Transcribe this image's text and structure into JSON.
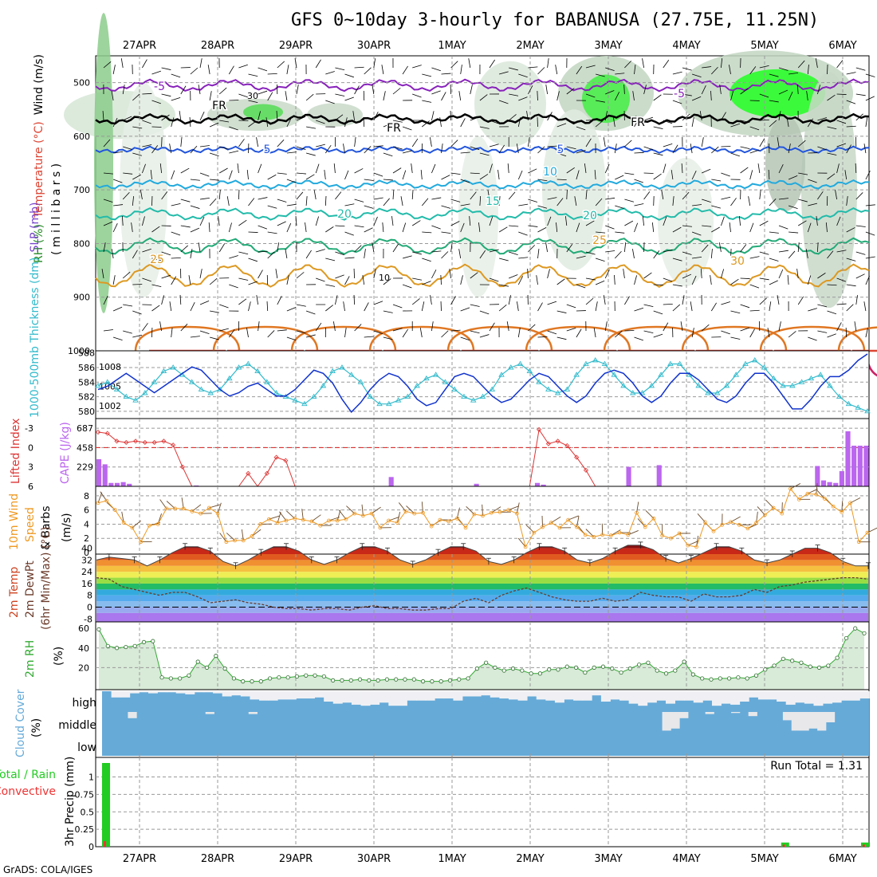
{
  "title": "GFS 0~10day 3-hourly for BABANUSA (27.75E, 11.25N)",
  "footer": "GrADS: COLA/IGES",
  "dates": [
    "27APR",
    "28APR",
    "29APR",
    "30APR",
    "1MAY",
    "2MAY",
    "3MAY",
    "4MAY",
    "5MAY",
    "6MAY"
  ],
  "colors": {
    "rh_green": "#33cc33",
    "thickness": "#33bbcc",
    "slp": "#1133cc",
    "lifted": "#dd3333",
    "cape": "#bb66ee",
    "wind": "#ee9922",
    "rh2m": "#33aa33",
    "cloud": "#66aad8",
    "rain": "#22cc22",
    "conv": "#ee3333"
  },
  "chart_data": [
    {
      "type": "contour",
      "panel": "upper-air",
      "ylabel_parts": [
        "RH (%)",
        "Temperature (°C)",
        "Wind (m/s)"
      ],
      "yunit": "( m i l l i b a r s )",
      "yticks": [
        "500",
        "600",
        "700",
        "800",
        "900",
        "1000"
      ],
      "temperature_labels": [
        "-5",
        "-5",
        "FR",
        "FR",
        "FR",
        "5",
        "5",
        "10",
        "15",
        "20",
        "20",
        "25",
        "25",
        "30"
      ],
      "rh_labels": [
        "30",
        "10"
      ]
    },
    {
      "type": "line",
      "panel": "thickness-slp",
      "ylabel_left": "1000-500mb Thickness (dm)",
      "ylabel_right": "SLP (mb)",
      "yticks_left": [
        "588",
        "586",
        "584",
        "582",
        "580"
      ],
      "yticks_right": [
        "1008",
        "1005",
        "1002"
      ],
      "series": [
        {
          "name": "1000-500mb Thickness (dm)",
          "values": [
            583.5,
            584,
            583,
            582,
            581.5,
            582.5,
            584,
            585.5,
            586,
            585,
            584,
            583,
            582.5,
            583,
            584.5,
            586,
            586.5,
            585.5,
            584,
            582.5,
            582,
            581.5,
            581,
            582,
            583.5,
            585.5,
            586,
            585,
            584,
            582,
            581,
            581,
            581.5,
            582,
            583.5,
            584.5,
            585,
            584,
            583,
            582,
            581.5,
            582,
            583,
            585,
            586,
            586.5,
            585.5,
            584,
            583,
            582.5,
            583,
            585,
            586.5,
            587,
            586.5,
            585,
            583.5,
            582.5,
            582.5,
            583.5,
            585,
            586.5,
            586.5,
            585,
            583.5,
            582.5,
            582.5,
            583.5,
            585,
            586.5,
            587,
            586,
            584.5,
            583.5,
            583.5,
            584,
            584.5,
            585,
            583.5,
            582,
            581,
            580.5,
            580
          ]
        },
        {
          "name": "SLP (mb)",
          "values": [
            1004.5,
            1005,
            1006,
            1007,
            1006,
            1005,
            1004,
            1005,
            1006,
            1007,
            1008,
            1007.5,
            1006,
            1004.5,
            1003.5,
            1004,
            1005,
            1005.5,
            1004.5,
            1003.5,
            1003.5,
            1004.5,
            1006,
            1007.5,
            1007,
            1005.5,
            1003,
            1001,
            1002.5,
            1004.5,
            1006,
            1007,
            1006.5,
            1005,
            1003,
            1002,
            1002.5,
            1004.5,
            1006.5,
            1007,
            1006.5,
            1005,
            1003.5,
            1002.5,
            1003,
            1004.5,
            1006,
            1007,
            1006.5,
            1005,
            1003.5,
            1002.5,
            1003.5,
            1005.5,
            1007,
            1007.5,
            1007,
            1005.5,
            1003.5,
            1002.5,
            1003.5,
            1005.5,
            1007,
            1007,
            1006,
            1004.5,
            1003,
            1002.5,
            1003.5,
            1005.5,
            1007,
            1007,
            1005.5,
            1003.5,
            1001.5,
            1001.5,
            1003,
            1005,
            1006.5,
            1006.5,
            1007.5,
            1009,
            1010
          ]
        }
      ]
    },
    {
      "type": "bar",
      "panel": "lifted-cape",
      "ylabel_left": "Lifted Index",
      "ylabel_right": "CAPE (J/kg)",
      "yticks_left": [
        "-3",
        "0",
        "3",
        "6"
      ],
      "yticks_right": [
        "687",
        "458",
        "229"
      ],
      "lifted_index": [
        -2.4,
        -2.2,
        -1,
        -0.8,
        -1,
        -0.8,
        -0.8,
        -1,
        -0.4,
        3,
        6,
        6,
        6,
        6,
        6,
        6,
        4,
        6,
        4,
        1.5,
        2,
        6,
        6,
        6,
        6,
        6,
        6,
        6,
        6,
        6,
        6,
        6,
        6,
        6,
        6,
        6,
        6,
        6,
        6,
        6,
        6,
        6,
        6,
        6,
        6,
        6,
        6,
        -2.8,
        -0.6,
        -1,
        -0.3,
        1.5,
        3.5,
        6,
        6,
        6,
        6,
        6,
        6,
        6,
        6,
        6,
        6,
        6,
        6,
        6,
        6,
        6,
        6,
        6,
        6,
        6,
        6,
        6,
        6,
        6,
        6,
        6,
        6,
        6,
        6,
        6,
        6
      ],
      "cape": [
        320,
        260,
        40,
        40,
        50,
        30,
        0,
        0,
        0,
        0,
        0,
        0,
        0,
        0,
        0,
        0,
        10,
        0,
        0,
        0,
        0,
        0,
        0,
        0,
        0,
        0,
        0,
        0,
        0,
        0,
        0,
        0,
        0,
        0,
        0,
        0,
        0,
        0,
        0,
        0,
        0,
        0,
        0,
        0,
        0,
        0,
        0,
        0,
        110,
        0,
        0,
        0,
        0,
        0,
        0,
        0,
        0,
        0,
        0,
        0,
        0,
        0,
        30,
        0,
        0,
        0,
        0,
        0,
        0,
        0,
        0,
        0,
        40,
        20,
        0,
        0,
        0,
        0,
        0,
        0,
        0,
        0,
        0,
        0,
        0,
        0,
        0,
        230,
        0,
        0,
        0,
        0,
        250,
        0,
        0,
        0,
        0,
        0,
        0,
        0,
        0,
        0,
        0,
        0,
        0,
        0,
        0,
        0,
        0,
        0,
        0,
        0,
        0,
        0,
        0,
        0,
        0,
        0,
        240,
        70,
        50,
        40,
        180,
        650,
        480,
        480,
        480
      ],
      "zero_line": 0
    },
    {
      "type": "line",
      "panel": "wind10m",
      "ylabel": "10m Wind Speed & Barbs (m/s)",
      "yticks": [
        "8",
        "6",
        "4",
        "2",
        "0"
      ],
      "ylim": [
        0,
        9
      ],
      "series": [
        {
          "name": "10m Wind Speed (m/s)",
          "values": [
            7,
            7.3,
            6,
            4.2,
            3.5,
            1.5,
            3.8,
            4,
            6.2,
            6.2,
            6.2,
            5.8,
            5.5,
            6.3,
            5.5,
            1.5,
            1.7,
            1.7,
            2.3,
            4,
            4.7,
            4.2,
            4.5,
            4.8,
            4.6,
            4.4,
            3.8,
            4.5,
            4.5,
            4.7,
            5.5,
            5.2,
            5.5,
            3.5,
            4.5,
            4.2,
            5.8,
            5.5,
            5.6,
            3.7,
            4.6,
            4.4,
            4.8,
            3.5,
            5.4,
            5.2,
            5.6,
            5.7,
            6,
            5.5,
            0.8,
            2.8,
            3.6,
            4.2,
            3.5,
            4.6,
            3.6,
            2.5,
            2.2,
            2.5,
            2.4,
            2.8,
            2.5,
            5.6,
            3.6,
            4.8,
            2.4,
            2,
            2.7,
            1,
            0.8,
            4.3,
            3,
            3.9,
            4.3,
            3.9,
            3.4,
            4.2,
            5.3,
            6.3,
            5.5,
            9,
            7.5,
            8.3,
            8.2,
            7.6,
            6.5,
            5.7,
            7,
            1.5,
            2.8
          ]
        }
      ]
    },
    {
      "type": "area",
      "panel": "temp2m",
      "ylabel_parts": [
        "2m Temp",
        "2m DewPt",
        "(6hr Min/Max) (°C)"
      ],
      "yticks": [
        "40",
        "32",
        "24",
        "16",
        "8",
        "0",
        "-8"
      ],
      "series": [
        {
          "name": "2m Temp",
          "values": [
            32,
            34,
            33,
            32,
            28,
            32,
            37,
            41,
            41,
            38,
            31,
            28,
            32,
            37,
            41,
            41,
            38,
            32,
            29,
            32,
            37,
            41,
            41,
            38,
            32,
            29,
            32,
            37,
            41,
            41,
            38,
            31,
            29,
            32,
            37,
            41,
            41,
            38,
            32,
            30,
            33,
            38,
            42,
            42,
            39,
            33,
            30,
            33,
            37,
            41,
            41,
            38,
            32,
            30,
            32,
            36,
            40,
            40,
            37,
            31,
            28,
            28
          ]
        },
        {
          "name": "2m DewPt",
          "values": [
            20,
            19,
            14,
            12,
            10,
            8,
            10,
            10,
            7,
            3,
            4,
            5,
            3,
            2,
            0,
            -1,
            -1,
            -2,
            -1,
            -1,
            -2,
            0,
            1,
            -1,
            -1,
            -2,
            -2,
            -1,
            -1,
            4,
            6,
            3,
            8,
            11,
            13,
            10,
            7,
            5,
            4,
            4,
            6,
            4,
            5,
            10,
            8,
            7,
            7,
            4,
            9,
            7,
            7,
            8,
            12,
            10,
            14,
            15,
            17,
            18,
            19,
            20,
            20,
            19
          ]
        }
      ]
    },
    {
      "type": "area",
      "panel": "rh2m",
      "ylabel": "2m RH (%)",
      "yticks": [
        "60",
        "40",
        "20"
      ],
      "ylim": [
        0,
        65
      ],
      "series": [
        {
          "name": "2m RH",
          "values": [
            59,
            42,
            40,
            41,
            42,
            46,
            47,
            10,
            9,
            9,
            12,
            26,
            20,
            32,
            19,
            9,
            6,
            6,
            6,
            9,
            10,
            10,
            11,
            12,
            12,
            11,
            7,
            7,
            7,
            8,
            7,
            7,
            8,
            8,
            8,
            8,
            6,
            6,
            6,
            7,
            8,
            9,
            19,
            25,
            20,
            17,
            19,
            17,
            14,
            14,
            18,
            18,
            21,
            20,
            15,
            20,
            21,
            19,
            15,
            19,
            23,
            25,
            17,
            14,
            17,
            26,
            13,
            9,
            8,
            9,
            9,
            10,
            9,
            12,
            18,
            22,
            29,
            27,
            25,
            21,
            20,
            22,
            30,
            50,
            60,
            55
          ]
        }
      ]
    },
    {
      "type": "heatmap",
      "panel": "cloud-cover",
      "ylabel": "Cloud Cover (%)",
      "rows": [
        "high",
        "middle",
        "low"
      ],
      "high": [
        100,
        70,
        70,
        90,
        95,
        90,
        95,
        95,
        90,
        85,
        95,
        95,
        90,
        75,
        80,
        75,
        60,
        55,
        55,
        60,
        60,
        65,
        65,
        70,
        50,
        40,
        45,
        35,
        30,
        35,
        45,
        30,
        30,
        55,
        55,
        55,
        65,
        65,
        55,
        75,
        75,
        80,
        70,
        65,
        60,
        55,
        75,
        60,
        55,
        45,
        60,
        55,
        55,
        80,
        50,
        60,
        55,
        40,
        30,
        45,
        55,
        40,
        55,
        55,
        45,
        55,
        30,
        40,
        35,
        50,
        70,
        60,
        60,
        50,
        35,
        45,
        40,
        30,
        40,
        45,
        55,
        55,
        65
      ],
      "middle": [
        0,
        0,
        0,
        30,
        0,
        0,
        0,
        0,
        0,
        0,
        0,
        0,
        10,
        0,
        0,
        0,
        0,
        10,
        0,
        0,
        0,
        0,
        0,
        0,
        0,
        0,
        0,
        0,
        0,
        0,
        0,
        0,
        0,
        0,
        0,
        0,
        0,
        0,
        0,
        0,
        0,
        0,
        0,
        0,
        0,
        0,
        0,
        0,
        0,
        0,
        0,
        0,
        0,
        0,
        0,
        0,
        0,
        0,
        0,
        0,
        0,
        0,
        0,
        0,
        0,
        90,
        80,
        30,
        0,
        0,
        10,
        0,
        0,
        5,
        0,
        20,
        0,
        0,
        0,
        40,
        90,
        90,
        80,
        90,
        50,
        0,
        0,
        0,
        0
      ],
      "low": [
        0
      ]
    },
    {
      "type": "bar",
      "panel": "precip",
      "ylabel_parts": [
        "Total / Rain",
        "Convective",
        "3hr Precip (mm)"
      ],
      "yticks": [
        "1",
        "0.75",
        "0.5",
        "0.25",
        "0"
      ],
      "ylim": [
        0,
        1.2
      ],
      "run_total_label": "Run Total = 1.31",
      "total": [
        1.2,
        0,
        0,
        0,
        0,
        0,
        0,
        0,
        0,
        0,
        0,
        0,
        0,
        0,
        0,
        0,
        0,
        0,
        0,
        0,
        0,
        0,
        0,
        0,
        0,
        0,
        0,
        0,
        0,
        0,
        0,
        0,
        0,
        0,
        0,
        0,
        0,
        0,
        0,
        0,
        0,
        0,
        0,
        0,
        0,
        0,
        0,
        0,
        0,
        0,
        0,
        0,
        0,
        0,
        0,
        0,
        0,
        0,
        0,
        0,
        0,
        0,
        0,
        0,
        0,
        0,
        0,
        0,
        0,
        0,
        0,
        0,
        0,
        0,
        0,
        0,
        0,
        0,
        0,
        0,
        0,
        0,
        0,
        0,
        0,
        0.06,
        0,
        0,
        0,
        0,
        0,
        0,
        0,
        0,
        0,
        0.06
      ],
      "convective": [
        0.08,
        0,
        0,
        0,
        0,
        0,
        0,
        0,
        0,
        0,
        0,
        0,
        0,
        0,
        0,
        0,
        0,
        0,
        0,
        0,
        0,
        0,
        0,
        0,
        0,
        0,
        0,
        0,
        0,
        0,
        0,
        0,
        0,
        0,
        0,
        0,
        0,
        0,
        0,
        0,
        0,
        0,
        0,
        0,
        0,
        0,
        0,
        0,
        0,
        0,
        0,
        0,
        0,
        0,
        0,
        0,
        0,
        0,
        0,
        0,
        0,
        0,
        0,
        0,
        0,
        0,
        0,
        0,
        0,
        0,
        0,
        0,
        0,
        0,
        0,
        0,
        0,
        0,
        0,
        0,
        0,
        0,
        0,
        0,
        0,
        0.03,
        0,
        0,
        0,
        0,
        0,
        0,
        0,
        0,
        0,
        0.03
      ]
    }
  ]
}
